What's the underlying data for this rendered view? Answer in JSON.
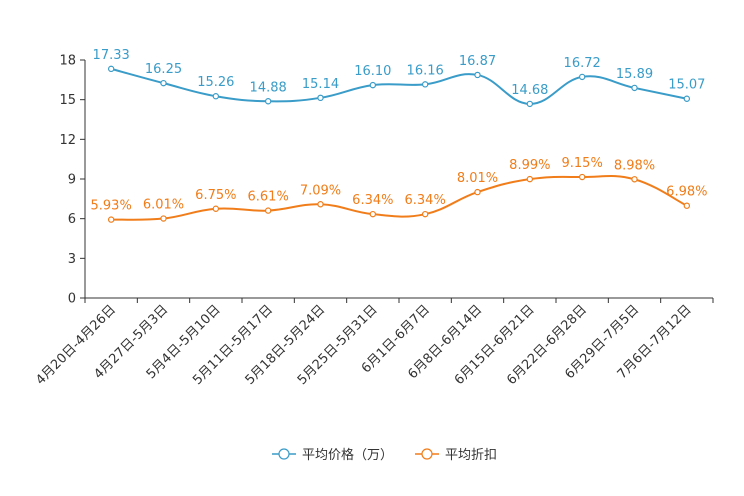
{
  "chart_data": {
    "type": "line",
    "title": "",
    "xlabel": "",
    "ylabel": "",
    "ylim": [
      0,
      18
    ],
    "yticks": [
      0,
      3,
      6,
      9,
      12,
      15,
      18
    ],
    "grid": false,
    "legend_position": "bottom",
    "categories": [
      "4月20日-4月26日",
      "4月27日-5月3日",
      "5月4日-5月10日",
      "5月11日-5月17日",
      "5月18日-5月24日",
      "5月25日-5月31日",
      "6月1日-6月7日",
      "6月8日-6月14日",
      "6月15日-6月21日",
      "6月22日-6月28日",
      "6月29日-7月5日",
      "7月6日-7月12日"
    ],
    "series": [
      {
        "name": "平均价格（万）",
        "color": "#3a9cc8",
        "values": [
          17.33,
          16.25,
          15.26,
          14.88,
          15.14,
          16.1,
          16.16,
          16.87,
          14.68,
          16.72,
          15.89,
          15.07
        ],
        "labels": [
          "17.33",
          "16.25",
          "15.26",
          "14.88",
          "15.14",
          "16.10",
          "16.16",
          "16.87",
          "14.68",
          "16.72",
          "15.89",
          "15.07"
        ]
      },
      {
        "name": "平均折扣",
        "color": "#f07d1a",
        "values": [
          5.93,
          6.01,
          6.75,
          6.61,
          7.09,
          6.34,
          6.34,
          8.01,
          8.99,
          9.15,
          8.98,
          6.98
        ],
        "labels": [
          "5.93%",
          "6.01%",
          "6.75%",
          "6.61%",
          "7.09%",
          "6.34%",
          "6.34%",
          "8.01%",
          "8.99%",
          "9.15%",
          "8.98%",
          "6.98%"
        ]
      }
    ]
  }
}
